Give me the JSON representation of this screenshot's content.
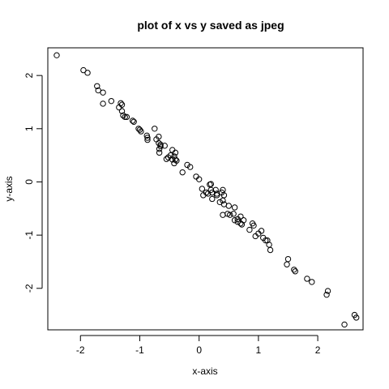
{
  "chart_data": {
    "type": "scatter",
    "title": "plot of x vs y saved as jpeg",
    "xlabel": "x-axis",
    "ylabel": "y-axis",
    "xlim": [
      -2.55,
      2.75
    ],
    "ylim": [
      -2.78,
      2.52
    ],
    "x_ticks": [
      -2,
      -1,
      0,
      1,
      2
    ],
    "y_ticks": [
      -2,
      -1,
      0,
      1,
      2
    ],
    "grid": false,
    "marker": "open-circle",
    "points": [
      [
        -2.4,
        2.38
      ],
      [
        -1.95,
        2.1
      ],
      [
        -1.88,
        2.05
      ],
      [
        -1.72,
        1.8
      ],
      [
        -1.7,
        1.72
      ],
      [
        -1.62,
        1.68
      ],
      [
        -1.62,
        1.47
      ],
      [
        -1.48,
        1.52
      ],
      [
        -1.35,
        1.4
      ],
      [
        -1.32,
        1.48
      ],
      [
        -1.3,
        1.45
      ],
      [
        -1.3,
        1.33
      ],
      [
        -1.28,
        1.25
      ],
      [
        -1.25,
        1.22
      ],
      [
        -1.22,
        1.22
      ],
      [
        -1.12,
        1.15
      ],
      [
        -1.1,
        1.13
      ],
      [
        -1.02,
        1.0
      ],
      [
        -1.0,
        0.98
      ],
      [
        -0.98,
        0.95
      ],
      [
        -0.88,
        0.87
      ],
      [
        -0.87,
        0.83
      ],
      [
        -0.87,
        0.79
      ],
      [
        -0.75,
        1.0
      ],
      [
        -0.72,
        0.8
      ],
      [
        -0.68,
        0.85
      ],
      [
        -0.68,
        0.73
      ],
      [
        -0.67,
        0.62
      ],
      [
        -0.65,
        0.7
      ],
      [
        -0.65,
        0.67
      ],
      [
        -0.67,
        0.55
      ],
      [
        -0.58,
        0.68
      ],
      [
        -0.55,
        0.43
      ],
      [
        -0.52,
        0.46
      ],
      [
        -0.48,
        0.5
      ],
      [
        -0.45,
        0.6
      ],
      [
        -0.45,
        0.42
      ],
      [
        -0.42,
        0.48
      ],
      [
        -0.4,
        0.55
      ],
      [
        -0.42,
        0.35
      ],
      [
        -0.4,
        0.42
      ],
      [
        -0.38,
        0.4
      ],
      [
        -0.28,
        0.18
      ],
      [
        -0.2,
        0.32
      ],
      [
        -0.15,
        0.28
      ],
      [
        -0.05,
        0.1
      ],
      [
        0.0,
        0.05
      ],
      [
        0.05,
        -0.13
      ],
      [
        0.07,
        -0.25
      ],
      [
        0.12,
        -0.2
      ],
      [
        0.15,
        -0.22
      ],
      [
        0.18,
        -0.05
      ],
      [
        0.2,
        -0.04
      ],
      [
        0.2,
        -0.15
      ],
      [
        0.22,
        -0.2
      ],
      [
        0.22,
        -0.32
      ],
      [
        0.28,
        -0.15
      ],
      [
        0.3,
        -0.22
      ],
      [
        0.3,
        -0.25
      ],
      [
        0.35,
        -0.38
      ],
      [
        0.38,
        -0.2
      ],
      [
        0.4,
        -0.15
      ],
      [
        0.42,
        -0.25
      ],
      [
        0.4,
        -0.35
      ],
      [
        0.42,
        -0.42
      ],
      [
        0.4,
        -0.62
      ],
      [
        0.48,
        -0.6
      ],
      [
        0.5,
        -0.45
      ],
      [
        0.52,
        -0.62
      ],
      [
        0.58,
        -0.6
      ],
      [
        0.6,
        -0.48
      ],
      [
        0.6,
        -0.72
      ],
      [
        0.65,
        -0.75
      ],
      [
        0.65,
        -0.7
      ],
      [
        0.7,
        -0.65
      ],
      [
        0.7,
        -0.78
      ],
      [
        0.72,
        -0.8
      ],
      [
        0.75,
        -0.72
      ],
      [
        0.85,
        -0.9
      ],
      [
        0.9,
        -0.78
      ],
      [
        0.92,
        -0.82
      ],
      [
        0.95,
        -1.02
      ],
      [
        1.0,
        -0.97
      ],
      [
        1.05,
        -0.92
      ],
      [
        1.08,
        -1.05
      ],
      [
        1.12,
        -1.1
      ],
      [
        1.15,
        -1.1
      ],
      [
        1.18,
        -1.18
      ],
      [
        1.2,
        -1.28
      ],
      [
        1.48,
        -1.55
      ],
      [
        1.5,
        -1.45
      ],
      [
        1.6,
        -1.65
      ],
      [
        1.62,
        -1.68
      ],
      [
        1.82,
        -1.82
      ],
      [
        1.9,
        -1.88
      ],
      [
        2.15,
        -2.12
      ],
      [
        2.17,
        -2.05
      ],
      [
        2.45,
        -2.68
      ],
      [
        2.62,
        -2.5
      ],
      [
        2.65,
        -2.55
      ]
    ]
  }
}
